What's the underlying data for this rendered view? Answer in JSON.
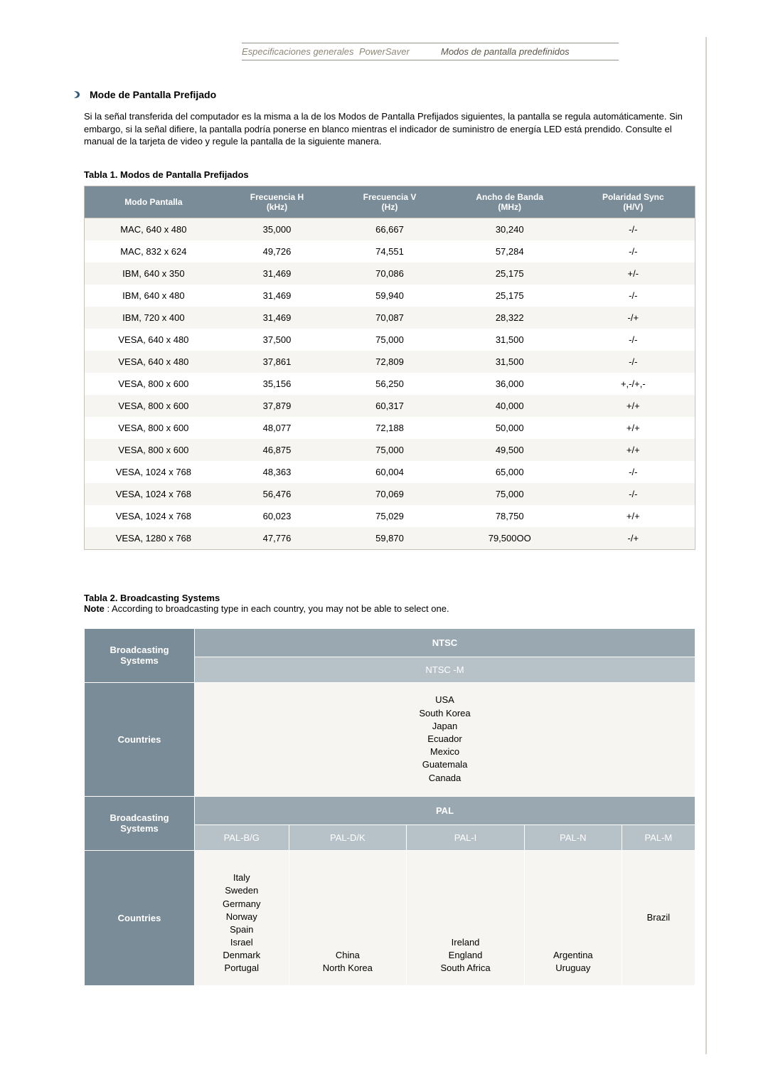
{
  "tabs": {
    "spec": "Especificaciones generales",
    "powersaver": "PowerSaver",
    "modes": "Modos de pantalla predefinidos"
  },
  "section": {
    "title": "Mode de Pantalla Prefijado"
  },
  "intro": "Si la señal transferida del computador es la misma a la de los Modos de Pantalla Prefijados siguientes, la pantalla se regula automáticamente. Sin embargo, si la señal difiere, la pantalla podría ponerse en blanco mientras el indicador de suministro de energía LED está prendido. Consulte el manual de la tarjeta de video y regule la pantalla de la siguiente manera.",
  "table1": {
    "caption": "Tabla 1. Modos de Pantalla Prefijados",
    "headers": {
      "mode": "Modo Pantalla",
      "fh_l1": "Frecuencia H",
      "fh_l2": "(kHz)",
      "fv_l1": "Frecuencia V",
      "fv_l2": "(Hz)",
      "bw_l1": "Ancho de Banda",
      "bw_l2": "(MHz)",
      "ps_l1": "Polaridad Sync",
      "ps_l2": "(H/V)"
    },
    "rows": [
      {
        "mode": "MAC, 640 x 480",
        "fh": "35,000",
        "fv": "66,667",
        "bw": "30,240",
        "ps": "-/-"
      },
      {
        "mode": "MAC, 832 x 624",
        "fh": "49,726",
        "fv": "74,551",
        "bw": "57,284",
        "ps": "-/-"
      },
      {
        "mode": "IBM, 640 x 350",
        "fh": "31,469",
        "fv": "70,086",
        "bw": "25,175",
        "ps": "+/-"
      },
      {
        "mode": "IBM, 640 x 480",
        "fh": "31,469",
        "fv": "59,940",
        "bw": "25,175",
        "ps": "-/-"
      },
      {
        "mode": "IBM, 720 x 400",
        "fh": "31,469",
        "fv": "70,087",
        "bw": "28,322",
        "ps": "-/+"
      },
      {
        "mode": "VESA, 640 x 480",
        "fh": "37,500",
        "fv": "75,000",
        "bw": "31,500",
        "ps": "-/-"
      },
      {
        "mode": "VESA, 640 x 480",
        "fh": "37,861",
        "fv": "72,809",
        "bw": "31,500",
        "ps": "-/-"
      },
      {
        "mode": "VESA, 800 x 600",
        "fh": "35,156",
        "fv": "56,250",
        "bw": "36,000",
        "ps": "+,-/+,-"
      },
      {
        "mode": "VESA, 800 x 600",
        "fh": "37,879",
        "fv": "60,317",
        "bw": "40,000",
        "ps": "+/+"
      },
      {
        "mode": "VESA, 800 x 600",
        "fh": "48,077",
        "fv": "72,188",
        "bw": "50,000",
        "ps": "+/+"
      },
      {
        "mode": "VESA, 800 x 600",
        "fh": "46,875",
        "fv": "75,000",
        "bw": "49,500",
        "ps": "+/+"
      },
      {
        "mode": "VESA, 1024 x 768",
        "fh": "48,363",
        "fv": "60,004",
        "bw": "65,000",
        "ps": "-/-"
      },
      {
        "mode": "VESA, 1024 x 768",
        "fh": "56,476",
        "fv": "70,069",
        "bw": "75,000",
        "ps": "-/-"
      },
      {
        "mode": "VESA, 1024 x 768",
        "fh": "60,023",
        "fv": "75,029",
        "bw": "78,750",
        "ps": "+/+"
      },
      {
        "mode": "VESA, 1280 x 768",
        "fh": "47,776",
        "fv": "59,870",
        "bw": "79,500OO",
        "ps": "-/+"
      }
    ]
  },
  "table2": {
    "caption": "Tabla 2. Broadcasting Systems",
    "note_label": "Note",
    "note_text": " : According to broadcasting type in each country, you may not be able to select one.",
    "labels": {
      "bs_l1": "Broadcasting",
      "bs_l2": "Systems",
      "countries": "Countries"
    },
    "ntsc": {
      "top": "NTSC",
      "sub": "NTSC -M",
      "countries": "USA\nSouth Korea\nJapan\nEcuador\nMexico\nGuatemala\nCanada"
    },
    "pal": {
      "top": "PAL",
      "subs": {
        "bg": "PAL-B/G",
        "dk": "PAL-D/K",
        "i": "PAL-I",
        "n": "PAL-N",
        "m": "PAL-M"
      },
      "countries": {
        "bg": "Italy\nSweden\nGermany\nNorway\nSpain\nIsrael\nDenmark\nPortugal",
        "dk": "China\nNorth Korea",
        "i": "Ireland\nEngland\nSouth Africa",
        "n": "Argentina\nUruguay",
        "m": "Brazil"
      }
    }
  },
  "colors": {
    "header_bg": "#7a8c97",
    "subheader_bg": "#9aa9b1",
    "subheader2_bg": "#b7c1c8",
    "row_alt_bg": "#f6f5f2",
    "border": "#c7c2b8",
    "tab_text": "#8e8879"
  }
}
